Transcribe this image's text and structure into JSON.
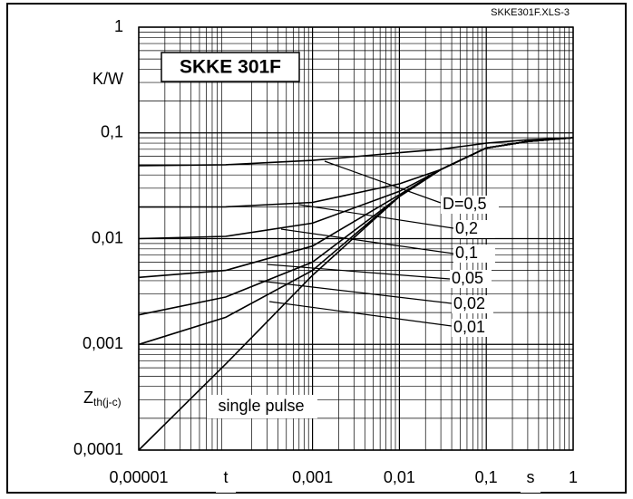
{
  "chart_data": {
    "type": "line",
    "title": "SKKE 301F",
    "file_label": "SKKE301F.XLS-3",
    "xlabel": "t",
    "xunit": "s",
    "yunit": "K/W",
    "ylabel_main": "Z",
    "ylabel_sub": "th(j-c)",
    "log_x": true,
    "log_y": true,
    "grid": true,
    "minor_grid": true,
    "xlim": [
      1e-05,
      1
    ],
    "ylim": [
      0.0001,
      1
    ],
    "xticks": [
      {
        "value": 1e-05,
        "label": "0,00001"
      },
      {
        "value": 0.001,
        "label": "0,001"
      },
      {
        "value": 0.01,
        "label": "0,01"
      },
      {
        "value": 0.1,
        "label": "0,1"
      },
      1
    ],
    "yticks": [
      {
        "value": 0.0001,
        "label": "0,0001"
      },
      {
        "value": 0.001,
        "label": "0,001"
      },
      {
        "value": 0.01,
        "label": "0,01"
      },
      {
        "value": 0.1,
        "label": "0,1"
      },
      1
    ],
    "x": [
      1e-05,
      0.0001,
      0.001,
      0.01,
      0.03,
      0.1,
      0.3,
      1
    ],
    "series": [
      {
        "name": "D=0,5",
        "color": "#000000",
        "values": [
          0.049,
          0.05,
          0.055,
          0.065,
          0.07,
          0.08,
          0.086,
          0.09
        ]
      },
      {
        "name": "0,2",
        "color": "#000000",
        "values": [
          0.0199,
          0.02,
          0.022,
          0.033,
          0.045,
          0.072,
          0.083,
          0.09
        ]
      },
      {
        "name": "0,1",
        "color": "#000000",
        "values": [
          0.01,
          0.0105,
          0.014,
          0.028,
          0.045,
          0.072,
          0.083,
          0.09
        ]
      },
      {
        "name": "0,05",
        "color": "#000000",
        "values": [
          0.0043,
          0.005,
          0.0085,
          0.026,
          0.045,
          0.072,
          0.083,
          0.09
        ]
      },
      {
        "name": "0,02",
        "color": "#000000",
        "values": [
          0.0019,
          0.0028,
          0.006,
          0.025,
          0.045,
          0.072,
          0.083,
          0.09
        ]
      },
      {
        "name": "0,01",
        "color": "#000000",
        "values": [
          0.001,
          0.0018,
          0.005,
          0.025,
          0.045,
          0.072,
          0.083,
          0.09
        ]
      },
      {
        "name": "single pulse",
        "color": "#000000",
        "values": [
          0.0001,
          0.00065,
          0.0045,
          0.025,
          0.045,
          0.072,
          0.083,
          0.09
        ]
      }
    ]
  }
}
